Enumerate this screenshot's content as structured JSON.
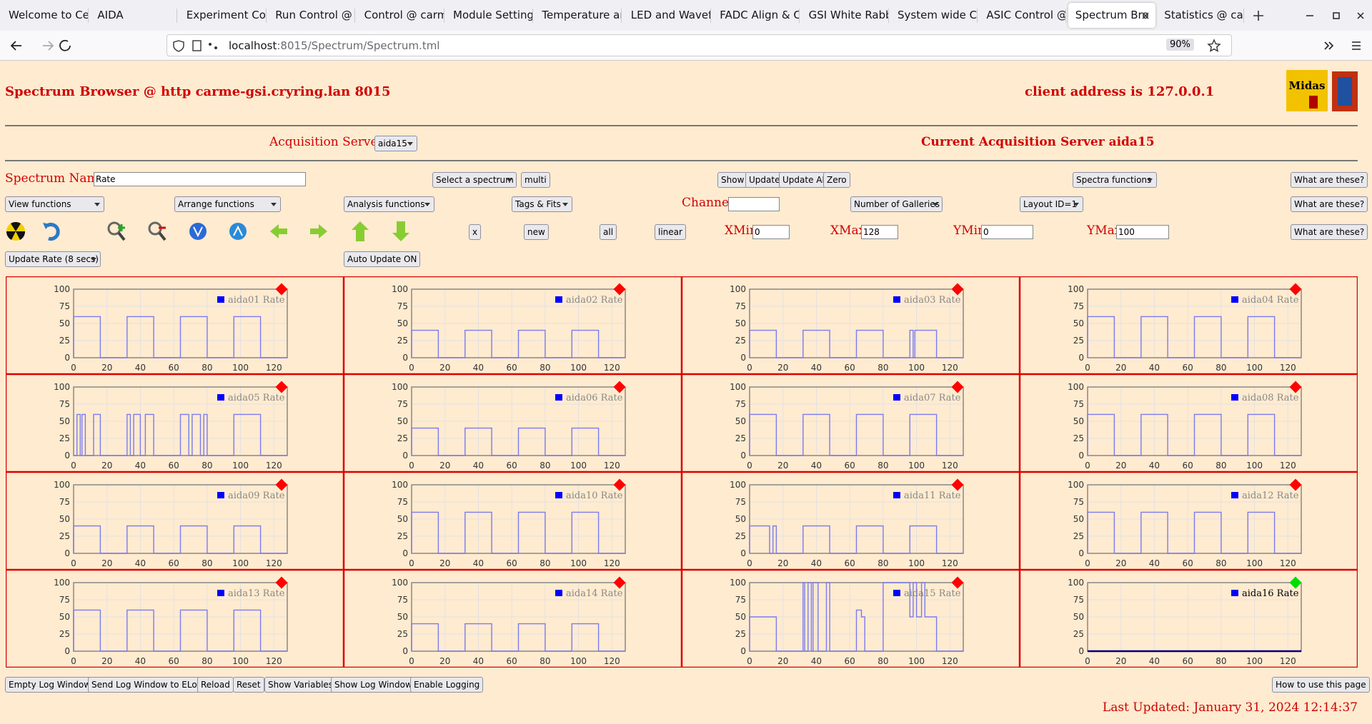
{
  "browser": {
    "tabs": [
      "Welcome to Ce",
      "AIDA",
      "Experiment Con",
      "Run Control @",
      "Control @ carm",
      "Module Setting",
      "Temperature an",
      "LED and Wavef",
      "FADC Align & C",
      "GSI White Rabb",
      "System wide Ch",
      "ASIC Control @",
      "Spectrum Bro",
      "Statistics @ car"
    ],
    "active_tab": 12,
    "url_host": "localhost",
    "url_path": ":8015/Spectrum/Spectrum.tml",
    "zoom": "90%"
  },
  "header": {
    "title": "Spectrum Browser @ http carme-gsi.cryring.lan 8015",
    "client_address": "client address is 127.0.0.1",
    "logo_text": "Midas"
  },
  "servers": {
    "label": "Acquisition Servers",
    "selected": "aida15",
    "current": "Current Acquisition Server aida15"
  },
  "row1": {
    "spectrum_name_label": "Spectrum Name:",
    "spectrum_name": "Rate",
    "select_spectrum": "Select a spectrum",
    "multi": "multi",
    "show": "Show",
    "update": "Update",
    "update_all": "Update All",
    "zero": "Zero",
    "spectra_functions": "Spectra functions",
    "help": "What are these?"
  },
  "row2": {
    "view_functions": "View functions",
    "arrange_functions": "Arrange functions",
    "analysis_functions": "Analysis functions",
    "tags_fits": "Tags & Fits",
    "channel_label": "Channel:",
    "galleries": "Number of Galleries",
    "layout": "Layout ID=1",
    "help": "What are these?"
  },
  "row3": {
    "x": "x",
    "new": "new",
    "all": "all",
    "linear": "linear",
    "xmin_label": "XMin",
    "xmin": "0",
    "xmax_label": "XMax",
    "xmax": "128",
    "ymin_label": "YMin",
    "ymin": "0",
    "ymax_label": "YMax",
    "ymax": "100",
    "help": "What are these?"
  },
  "row4": {
    "update_rate": "Update Rate (8 secs)",
    "auto_update": "Auto Update ON"
  },
  "footer": {
    "buttons": [
      "Empty Log Window",
      "Send Log Window to ELog",
      "Reload",
      "Reset",
      "Show Variables",
      "Show Log Window",
      "Enable Logging"
    ],
    "help": "How to use this page",
    "last_updated": "Last Updated: January 31, 2024 12:14:37"
  },
  "chart_data": [
    {
      "type": "line",
      "x": [
        0,
        0,
        16,
        16,
        32,
        32,
        48,
        48,
        64,
        64,
        80,
        80,
        96,
        96,
        112,
        112,
        128
      ],
      "series": [
        {
          "name": "aida01 Rate",
          "color": "#7b7bef",
          "values": [
            0,
            60,
            60,
            0,
            0,
            60,
            60,
            0,
            0,
            60,
            60,
            0,
            0,
            60,
            60,
            0,
            0
          ]
        }
      ],
      "xlim": [
        0,
        128
      ],
      "ylim": [
        0,
        100
      ],
      "xticks": [
        0,
        20,
        40,
        60,
        80,
        100,
        120
      ],
      "yticks": [
        0,
        25,
        50,
        75,
        100
      ],
      "grid": true,
      "status_color": "#ff0000"
    },
    {
      "type": "line",
      "x": [
        0,
        0,
        16,
        16,
        32,
        32,
        48,
        48,
        64,
        64,
        80,
        80,
        96,
        96,
        112,
        112,
        128
      ],
      "series": [
        {
          "name": "aida02 Rate",
          "color": "#7b7bef",
          "values": [
            0,
            40,
            40,
            0,
            0,
            40,
            40,
            0,
            0,
            40,
            40,
            0,
            0,
            40,
            40,
            0,
            0
          ]
        }
      ],
      "xlim": [
        0,
        128
      ],
      "ylim": [
        0,
        100
      ],
      "xticks": [
        0,
        20,
        40,
        60,
        80,
        100,
        120
      ],
      "yticks": [
        0,
        25,
        50,
        75,
        100
      ],
      "grid": true,
      "status_color": "#ff0000"
    },
    {
      "type": "line",
      "x": [
        0,
        0,
        16,
        16,
        32,
        32,
        48,
        48,
        64,
        64,
        80,
        80,
        96,
        96,
        98,
        98,
        99,
        99,
        112,
        112,
        128
      ],
      "series": [
        {
          "name": "aida03 Rate",
          "color": "#7b7bef",
          "values": [
            0,
            40,
            40,
            0,
            0,
            40,
            40,
            0,
            0,
            40,
            40,
            0,
            0,
            40,
            40,
            0,
            0,
            40,
            40,
            0,
            0
          ]
        }
      ],
      "xlim": [
        0,
        128
      ],
      "ylim": [
        0,
        100
      ],
      "xticks": [
        0,
        20,
        40,
        60,
        80,
        100,
        120
      ],
      "yticks": [
        0,
        25,
        50,
        75,
        100
      ],
      "grid": true,
      "status_color": "#ff0000"
    },
    {
      "type": "line",
      "x": [
        0,
        0,
        16,
        16,
        32,
        32,
        48,
        48,
        64,
        64,
        80,
        80,
        96,
        96,
        112,
        112,
        128
      ],
      "series": [
        {
          "name": "aida04 Rate",
          "color": "#7b7bef",
          "values": [
            0,
            60,
            60,
            0,
            0,
            60,
            60,
            0,
            0,
            60,
            60,
            0,
            0,
            60,
            60,
            0,
            0
          ]
        }
      ],
      "xlim": [
        0,
        128
      ],
      "ylim": [
        0,
        100
      ],
      "xticks": [
        0,
        20,
        40,
        60,
        80,
        100,
        120
      ],
      "yticks": [
        0,
        25,
        50,
        75,
        100
      ],
      "grid": true,
      "status_color": "#ff0000"
    },
    {
      "type": "line",
      "x": [
        0,
        2,
        2,
        4,
        4,
        5,
        5,
        7,
        7,
        12,
        12,
        16,
        16,
        32,
        32,
        34,
        34,
        36,
        36,
        40,
        40,
        43,
        43,
        48,
        48,
        64,
        64,
        69,
        69,
        71,
        71,
        76,
        76,
        78,
        78,
        80,
        80,
        96,
        96,
        112,
        112,
        128
      ],
      "series": [
        {
          "name": "aida05 Rate",
          "color": "#7b7bef",
          "values": [
            0,
            0,
            60,
            60,
            0,
            0,
            60,
            60,
            0,
            0,
            60,
            60,
            0,
            0,
            60,
            60,
            0,
            0,
            60,
            60,
            0,
            0,
            60,
            60,
            0,
            0,
            60,
            60,
            0,
            0,
            60,
            60,
            0,
            0,
            60,
            60,
            0,
            0,
            60,
            60,
            0,
            0
          ]
        }
      ],
      "xlim": [
        0,
        128
      ],
      "ylim": [
        0,
        100
      ],
      "xticks": [
        0,
        20,
        40,
        60,
        80,
        100,
        120
      ],
      "yticks": [
        0,
        25,
        50,
        75,
        100
      ],
      "grid": true,
      "status_color": "#ff0000"
    },
    {
      "type": "line",
      "x": [
        0,
        0,
        16,
        16,
        32,
        32,
        48,
        48,
        64,
        64,
        80,
        80,
        96,
        96,
        112,
        112,
        128
      ],
      "series": [
        {
          "name": "aida06 Rate",
          "color": "#7b7bef",
          "values": [
            0,
            40,
            40,
            0,
            0,
            40,
            40,
            0,
            0,
            40,
            40,
            0,
            0,
            40,
            40,
            0,
            0
          ]
        }
      ],
      "xlim": [
        0,
        128
      ],
      "ylim": [
        0,
        100
      ],
      "xticks": [
        0,
        20,
        40,
        60,
        80,
        100,
        120
      ],
      "yticks": [
        0,
        25,
        50,
        75,
        100
      ],
      "grid": true,
      "status_color": "#ff0000"
    },
    {
      "type": "line",
      "x": [
        0,
        0,
        16,
        16,
        32,
        32,
        48,
        48,
        64,
        64,
        80,
        80,
        96,
        96,
        112,
        112,
        128
      ],
      "series": [
        {
          "name": "aida07 Rate",
          "color": "#7b7bef",
          "values": [
            0,
            60,
            60,
            0,
            0,
            60,
            60,
            0,
            0,
            60,
            60,
            0,
            0,
            60,
            60,
            0,
            0
          ]
        }
      ],
      "xlim": [
        0,
        128
      ],
      "ylim": [
        0,
        100
      ],
      "xticks": [
        0,
        20,
        40,
        60,
        80,
        100,
        120
      ],
      "yticks": [
        0,
        25,
        50,
        75,
        100
      ],
      "grid": true,
      "status_color": "#ff0000"
    },
    {
      "type": "line",
      "x": [
        0,
        0,
        16,
        16,
        32,
        32,
        48,
        48,
        64,
        64,
        80,
        80,
        96,
        96,
        112,
        112,
        128
      ],
      "series": [
        {
          "name": "aida08 Rate",
          "color": "#7b7bef",
          "values": [
            0,
            60,
            60,
            0,
            0,
            60,
            60,
            0,
            0,
            60,
            60,
            0,
            0,
            60,
            60,
            0,
            0
          ]
        }
      ],
      "xlim": [
        0,
        128
      ],
      "ylim": [
        0,
        100
      ],
      "xticks": [
        0,
        20,
        40,
        60,
        80,
        100,
        120
      ],
      "yticks": [
        0,
        25,
        50,
        75,
        100
      ],
      "grid": true,
      "status_color": "#ff0000"
    },
    {
      "type": "line",
      "x": [
        0,
        0,
        16,
        16,
        32,
        32,
        48,
        48,
        64,
        64,
        80,
        80,
        96,
        96,
        112,
        112,
        128
      ],
      "series": [
        {
          "name": "aida09 Rate",
          "color": "#7b7bef",
          "values": [
            0,
            40,
            40,
            0,
            0,
            40,
            40,
            0,
            0,
            40,
            40,
            0,
            0,
            40,
            40,
            0,
            0
          ]
        }
      ],
      "xlim": [
        0,
        128
      ],
      "ylim": [
        0,
        100
      ],
      "xticks": [
        0,
        20,
        40,
        60,
        80,
        100,
        120
      ],
      "yticks": [
        0,
        25,
        50,
        75,
        100
      ],
      "grid": true,
      "status_color": "#ff0000"
    },
    {
      "type": "line",
      "x": [
        0,
        0,
        16,
        16,
        32,
        32,
        48,
        48,
        64,
        64,
        80,
        80,
        96,
        96,
        112,
        112,
        128
      ],
      "series": [
        {
          "name": "aida10 Rate",
          "color": "#7b7bef",
          "values": [
            0,
            60,
            60,
            0,
            0,
            60,
            60,
            0,
            0,
            60,
            60,
            0,
            0,
            60,
            60,
            0,
            0
          ]
        }
      ],
      "xlim": [
        0,
        128
      ],
      "ylim": [
        0,
        100
      ],
      "xticks": [
        0,
        20,
        40,
        60,
        80,
        100,
        120
      ],
      "yticks": [
        0,
        25,
        50,
        75,
        100
      ],
      "grid": true,
      "status_color": "#ff0000"
    },
    {
      "type": "line",
      "x": [
        0,
        0,
        12,
        12,
        14,
        14,
        16,
        16,
        32,
        32,
        48,
        48,
        64,
        64,
        80,
        80,
        96,
        96,
        112,
        112,
        128
      ],
      "series": [
        {
          "name": "aida11 Rate",
          "color": "#7b7bef",
          "values": [
            0,
            40,
            40,
            0,
            0,
            40,
            40,
            0,
            0,
            40,
            40,
            0,
            0,
            40,
            40,
            0,
            0,
            40,
            40,
            0,
            0
          ]
        }
      ],
      "xlim": [
        0,
        128
      ],
      "ylim": [
        0,
        100
      ],
      "xticks": [
        0,
        20,
        40,
        60,
        80,
        100,
        120
      ],
      "yticks": [
        0,
        25,
        50,
        75,
        100
      ],
      "grid": true,
      "status_color": "#ff0000"
    },
    {
      "type": "line",
      "x": [
        0,
        0,
        16,
        16,
        32,
        32,
        48,
        48,
        64,
        64,
        80,
        80,
        96,
        96,
        112,
        112,
        128
      ],
      "series": [
        {
          "name": "aida12 Rate",
          "color": "#7b7bef",
          "values": [
            0,
            60,
            60,
            0,
            0,
            60,
            60,
            0,
            0,
            60,
            60,
            0,
            0,
            60,
            60,
            0,
            0
          ]
        }
      ],
      "xlim": [
        0,
        128
      ],
      "ylim": [
        0,
        100
      ],
      "xticks": [
        0,
        20,
        40,
        60,
        80,
        100,
        120
      ],
      "yticks": [
        0,
        25,
        50,
        75,
        100
      ],
      "grid": true,
      "status_color": "#ff0000"
    },
    {
      "type": "line",
      "x": [
        0,
        0,
        16,
        16,
        32,
        32,
        48,
        48,
        64,
        64,
        80,
        80,
        96,
        96,
        112,
        112,
        128
      ],
      "series": [
        {
          "name": "aida13 Rate",
          "color": "#7b7bef",
          "values": [
            0,
            60,
            60,
            0,
            0,
            60,
            60,
            0,
            0,
            60,
            60,
            0,
            0,
            60,
            60,
            0,
            0
          ]
        }
      ],
      "xlim": [
        0,
        128
      ],
      "ylim": [
        0,
        100
      ],
      "xticks": [
        0,
        20,
        40,
        60,
        80,
        100,
        120
      ],
      "yticks": [
        0,
        25,
        50,
        75,
        100
      ],
      "grid": true,
      "status_color": "#ff0000"
    },
    {
      "type": "line",
      "x": [
        0,
        0,
        16,
        16,
        32,
        32,
        48,
        48,
        64,
        64,
        80,
        80,
        96,
        96,
        112,
        112,
        128
      ],
      "series": [
        {
          "name": "aida14 Rate",
          "color": "#7b7bef",
          "values": [
            0,
            40,
            40,
            0,
            0,
            40,
            40,
            0,
            0,
            40,
            40,
            0,
            0,
            40,
            40,
            0,
            0
          ]
        }
      ],
      "xlim": [
        0,
        128
      ],
      "ylim": [
        0,
        100
      ],
      "xticks": [
        0,
        20,
        40,
        60,
        80,
        100,
        120
      ],
      "yticks": [
        0,
        25,
        50,
        75,
        100
      ],
      "grid": true,
      "status_color": "#ff0000"
    },
    {
      "type": "line",
      "x": [
        0,
        0,
        16,
        16,
        32,
        32,
        33,
        33,
        35,
        35,
        37,
        37,
        38,
        38,
        41,
        41,
        46,
        46,
        48,
        48,
        64,
        64,
        67,
        67,
        69,
        69,
        80,
        80,
        96,
        96,
        98,
        98,
        100,
        100,
        103,
        103,
        105,
        105,
        112,
        112,
        128
      ],
      "series": [
        {
          "name": "aida15 Rate",
          "color": "#7b7bef",
          "values": [
            0,
            50,
            50,
            0,
            0,
            100,
            100,
            0,
            0,
            100,
            100,
            0,
            0,
            100,
            100,
            0,
            0,
            100,
            100,
            0,
            0,
            60,
            60,
            50,
            50,
            0,
            0,
            100,
            100,
            50,
            50,
            100,
            100,
            50,
            50,
            100,
            100,
            50,
            50,
            0,
            0
          ]
        }
      ],
      "xlim": [
        0,
        128
      ],
      "ylim": [
        0,
        100
      ],
      "xticks": [
        0,
        20,
        40,
        60,
        80,
        100,
        120
      ],
      "yticks": [
        0,
        25,
        50,
        75,
        100
      ],
      "grid": true,
      "status_color": "#ff0000"
    },
    {
      "type": "line",
      "x": [
        0,
        128
      ],
      "series": [
        {
          "name": "aida16 Rate",
          "color": "#000080",
          "values": [
            0,
            0
          ]
        }
      ],
      "xlim": [
        0,
        128
      ],
      "ylim": [
        0,
        100
      ],
      "xticks": [
        0,
        20,
        40,
        60,
        80,
        100,
        120
      ],
      "yticks": [
        0,
        25,
        50,
        75,
        100
      ],
      "grid": true,
      "status_color": "#00dd00"
    }
  ]
}
